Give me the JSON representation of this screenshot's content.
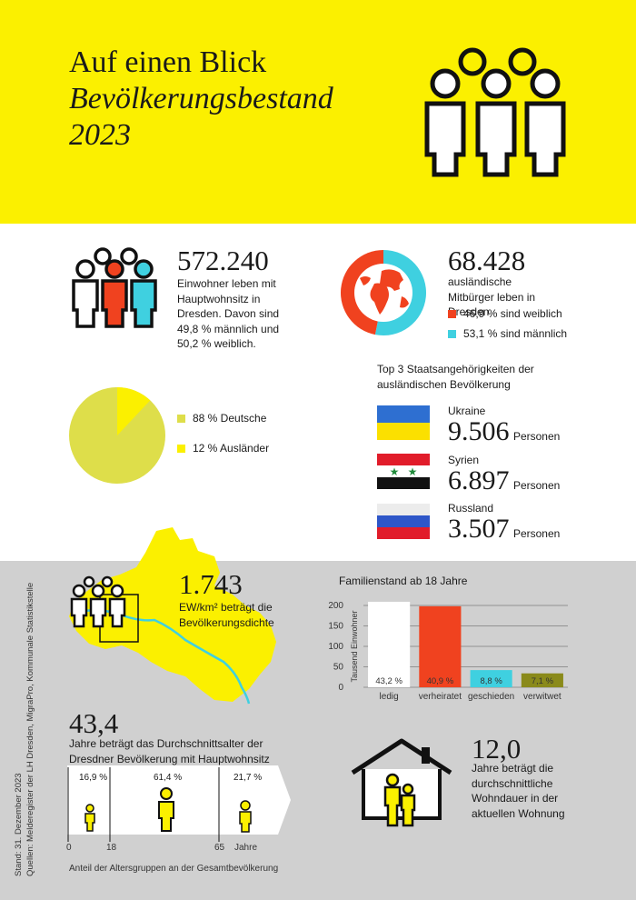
{
  "header": {
    "line1": "Auf einen Blick",
    "line2": "Bevölkerungsbestand",
    "line3": "2023",
    "bg_color": "#fbf000"
  },
  "population": {
    "number": "572.240",
    "text": "Einwohner leben mit Hauptwohnsitz in Dresden. Davon sind 49,8 % männlich und 50,2 % weiblich."
  },
  "foreign": {
    "number": "68.428",
    "text": "ausländische Mitbürger leben in Dresden",
    "female_label": "46,9 % sind weiblich",
    "male_label": "53,1 % sind männlich",
    "female_share": 46.9,
    "male_share": 53.1,
    "female_color": "#f0421f",
    "male_color": "#3fd0e0"
  },
  "nationality_pie": {
    "german_label": "88 % Deutsche",
    "foreign_label": "12 % Ausländer",
    "german_share": 88,
    "foreign_share": 12,
    "german_color": "#dede4a",
    "foreign_color": "#fbf000"
  },
  "top3": {
    "title": "Top 3 Staatsangehörigkeiten der ausländischen Bevölkerung",
    "unit": "Personen",
    "items": [
      {
        "country": "Ukraine",
        "value": "9.506"
      },
      {
        "country": "Syrien",
        "value": "6.897"
      },
      {
        "country": "Russland",
        "value": "3.507"
      }
    ]
  },
  "density": {
    "number": "1.743",
    "text": "EW/km² beträgt die Bevölkerungsdichte"
  },
  "chart_data": {
    "type": "bar",
    "title": "Familienstand ab 18 Jahre",
    "ylabel": "Tausend Einwohner",
    "ylim": [
      0,
      200
    ],
    "yticks": [
      0,
      50,
      100,
      150,
      200
    ],
    "categories": [
      "ledig",
      "verheiratet",
      "geschieden",
      "verwitwet"
    ],
    "values": [
      209,
      198,
      42,
      34
    ],
    "labels": [
      "43,2 %",
      "40,9 %",
      "8,8 %",
      "7,1 %"
    ],
    "colors": [
      "#ffffff",
      "#f0421f",
      "#3fd0e0",
      "#8a8a1a"
    ]
  },
  "age": {
    "number": "43,4",
    "text": "Jahre beträgt das Durchschnittsalter der Dresdner Bevölkerung mit Hauptwohnsitz",
    "groups": [
      "16,9 %",
      "61,4 %",
      "21,7 %"
    ],
    "ticks": [
      "0",
      "18",
      "65",
      "Jahre"
    ],
    "caption": "Anteil der Altersgruppen an der Gesamtbevölkerung"
  },
  "housing": {
    "number": "12,0",
    "text": "Jahre beträgt die durchschnittliche Wohndauer in der aktuellen Wohnung"
  },
  "source": {
    "line1": "Stand:   31. Dezember 2023",
    "line2": "Quellen: Melderegister der LH Dresden, MigraPro,  Kommunale Statistikstelle"
  }
}
